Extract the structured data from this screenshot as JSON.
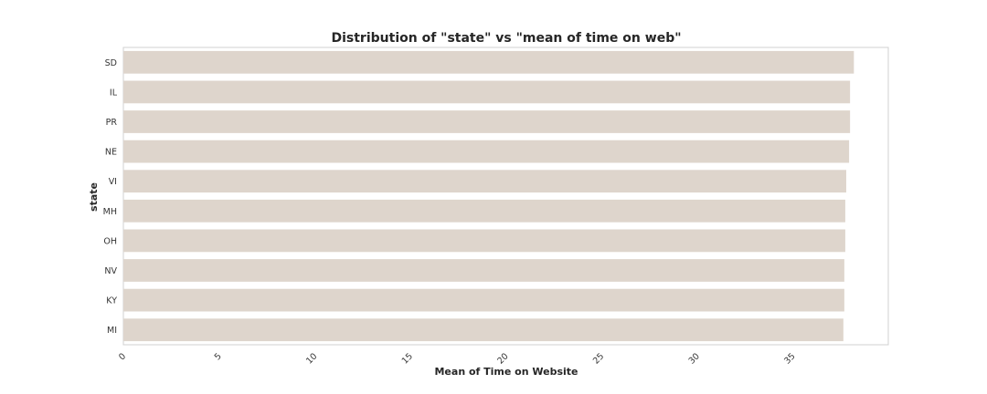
{
  "chart_data": {
    "type": "bar",
    "orientation": "horizontal",
    "title": "Distribution of \"state\" vs \"mean of time on web\"",
    "xlabel": "Mean of Time on Website",
    "ylabel": "state",
    "categories": [
      "SD",
      "IL",
      "PR",
      "NE",
      "VI",
      "MH",
      "OH",
      "NV",
      "KY",
      "MI"
    ],
    "values": [
      38.2,
      38.0,
      38.0,
      37.95,
      37.8,
      37.75,
      37.75,
      37.7,
      37.7,
      37.65
    ],
    "xlim": [
      0,
      40
    ],
    "xticks": [
      "0",
      "5",
      "10",
      "15",
      "20",
      "25",
      "30",
      "35"
    ],
    "bar_color": "#ded5cc",
    "grid": false,
    "legend": "none"
  }
}
